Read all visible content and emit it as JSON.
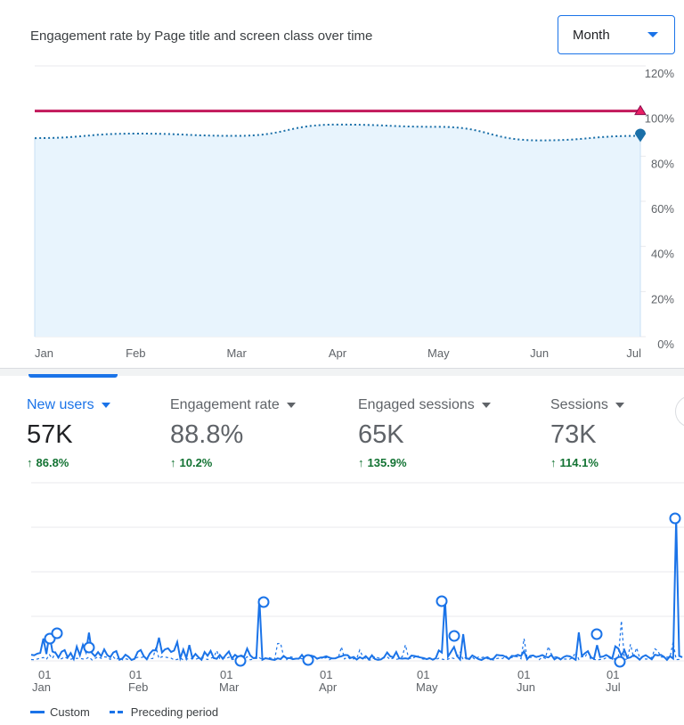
{
  "top_card": {
    "title": "Engagement rate by Page title and screen class over time",
    "granularity": {
      "selected": "Month"
    }
  },
  "chart_data": [
    {
      "type": "line",
      "title": "Engagement rate by Page title and screen class over time",
      "x": [
        "Jan",
        "Feb",
        "Mar",
        "Apr",
        "May",
        "Jun",
        "Jul"
      ],
      "y_ticks": [
        "0%",
        "20%",
        "40%",
        "60%",
        "80%",
        "100%",
        "120%"
      ],
      "ylim": [
        0,
        120
      ],
      "grid": true,
      "series": [
        {
          "values": [
            100,
            100,
            100,
            100,
            100,
            100,
            100
          ],
          "color": "#c2185b",
          "style": "solid",
          "marker": "triangle"
        },
        {
          "values": [
            88,
            90,
            89,
            94,
            93,
            87,
            89
          ],
          "color": "#1a73e8",
          "style": "dotted",
          "marker": "pin",
          "fill": "#e8f4fd"
        }
      ]
    },
    {
      "type": "line",
      "x_ticks": [
        {
          "day": "01",
          "month": "Jan"
        },
        {
          "day": "01",
          "month": "Feb"
        },
        {
          "day": "01",
          "month": "Mar"
        },
        {
          "day": "01",
          "month": "Apr"
        },
        {
          "day": "01",
          "month": "May"
        },
        {
          "day": "01",
          "month": "Jun"
        },
        {
          "day": "01",
          "month": "Jul"
        }
      ],
      "legend": [
        "Custom",
        "Preceding period"
      ],
      "legend_placement": "bottom-left",
      "grid": true,
      "series": [
        {
          "name": "Custom",
          "style": "solid",
          "color": "#1a73e8"
        },
        {
          "name": "Preceding period",
          "style": "dashed",
          "color": "#1a73e8"
        }
      ]
    }
  ],
  "metrics": [
    {
      "label": "New users",
      "value": "57K",
      "delta": "86.8%",
      "active": true
    },
    {
      "label": "Engagement rate",
      "value": "88.8%",
      "delta": "10.2%",
      "active": false
    },
    {
      "label": "Engaged sessions",
      "value": "65K",
      "delta": "135.9%",
      "active": false
    },
    {
      "label": "Sessions",
      "value": "73K",
      "delta": "114.1%",
      "active": false
    }
  ]
}
